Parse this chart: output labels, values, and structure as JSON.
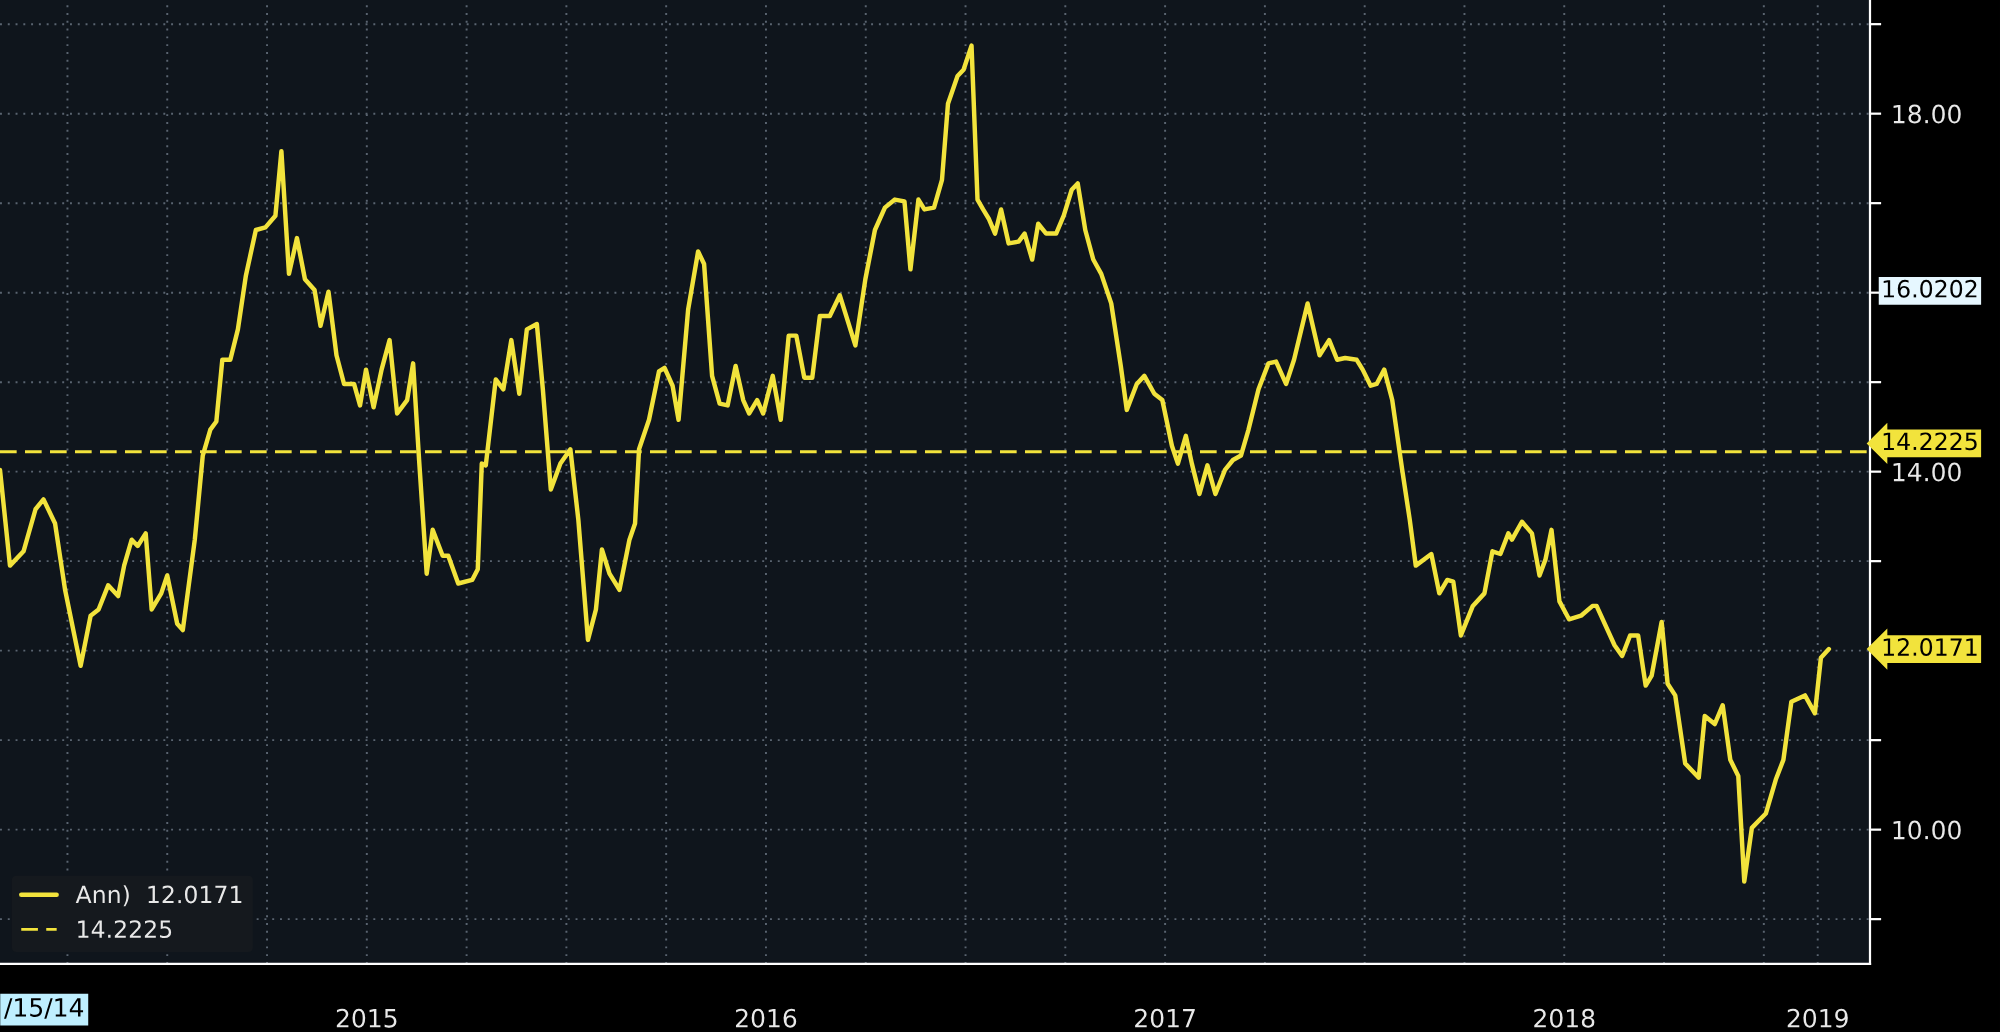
{
  "chart_data": {
    "type": "line",
    "x": [
      2014.581,
      2014.606,
      2014.64,
      2014.67,
      2014.69,
      2014.719,
      2014.744,
      2014.783,
      2014.808,
      2014.828,
      2014.852,
      2014.877,
      2014.892,
      2014.911,
      2014.926,
      2014.946,
      2014.961,
      2014.985,
      2015.0,
      2015.025,
      2015.039,
      2015.069,
      2015.089,
      2015.108,
      2015.123,
      2015.138,
      2015.158,
      2015.177,
      2015.197,
      2015.222,
      2015.246,
      2015.271,
      2015.286,
      2015.305,
      2015.325,
      2015.345,
      2015.369,
      2015.384,
      2015.404,
      2015.424,
      2015.443,
      2015.468,
      2015.483,
      2015.498,
      2015.517,
      2015.537,
      2015.557,
      2015.576,
      2015.601,
      2015.616,
      2015.631,
      2015.65,
      2015.665,
      2015.69,
      2015.704,
      2015.729,
      2015.764,
      2015.778,
      2015.788,
      2015.798,
      2015.823,
      2015.842,
      2015.862,
      2015.882,
      2015.901,
      2015.926,
      2015.941,
      2015.961,
      2015.985,
      2016.01,
      2016.03,
      2016.054,
      2016.074,
      2016.089,
      2016.108,
      2016.133,
      2016.158,
      2016.172,
      2016.182,
      2016.207,
      2016.232,
      2016.246,
      2016.266,
      2016.281,
      2016.305,
      2016.33,
      2016.345,
      2016.365,
      2016.384,
      2016.404,
      2016.424,
      2016.443,
      2016.458,
      2016.478,
      2016.493,
      2016.517,
      2016.537,
      2016.557,
      2016.576,
      2016.596,
      2016.616,
      2016.635,
      2016.66,
      2016.685,
      2016.724,
      2016.749,
      2016.773,
      2016.798,
      2016.823,
      2016.847,
      2016.862,
      2016.882,
      2016.897,
      2016.921,
      2016.941,
      2016.956,
      2016.98,
      2016.995,
      2017.015,
      2017.03,
      2017.044,
      2017.059,
      2017.074,
      2017.089,
      2017.108,
      2017.133,
      2017.148,
      2017.167,
      2017.182,
      2017.202,
      2017.227,
      2017.246,
      2017.266,
      2017.281,
      2017.3,
      2017.32,
      2017.34,
      2017.365,
      2017.389,
      2017.404,
      2017.429,
      2017.448,
      2017.473,
      2017.493,
      2017.517,
      2017.532,
      2017.552,
      2017.567,
      2017.586,
      2017.606,
      2017.626,
      2017.65,
      2017.67,
      2017.69,
      2017.709,
      2017.734,
      2017.759,
      2017.778,
      2017.803,
      2017.823,
      2017.857,
      2017.887,
      2017.911,
      2017.931,
      2017.951,
      2017.98,
      2017.995,
      2018.015,
      2018.03,
      2018.049,
      2018.069,
      2018.094,
      2018.113,
      2018.128,
      2018.167,
      2018.187,
      2018.207,
      2018.222,
      2018.241,
      2018.271,
      2018.3,
      2018.32,
      2018.34,
      2018.36,
      2018.369,
      2018.394,
      2018.419,
      2018.438,
      2018.453,
      2018.468,
      2018.488,
      2018.512,
      2018.542,
      2018.571,
      2018.581,
      2018.626,
      2018.645,
      2018.665,
      2018.685,
      2018.704,
      2018.719,
      2018.744,
      2018.759,
      2018.778,
      2018.803,
      2018.837,
      2018.852,
      2018.877,
      2018.897,
      2018.916,
      2018.936,
      2018.951,
      2018.97,
      2019.005,
      2019.03,
      2019.049,
      2019.069,
      2019.103,
      2019.128,
      2019.143,
      2019.163
    ],
    "series": [
      {
        "name": "Ann)  12.0171",
        "color": "#f2e33c",
        "values": [
          14.02,
          12.95,
          13.11,
          13.58,
          13.69,
          13.42,
          12.68,
          11.83,
          12.39,
          12.46,
          12.73,
          12.61,
          12.95,
          13.24,
          13.17,
          13.31,
          12.46,
          12.64,
          12.84,
          12.3,
          12.23,
          13.24,
          14.18,
          14.47,
          14.56,
          15.25,
          15.25,
          15.59,
          16.19,
          16.7,
          16.73,
          16.86,
          17.58,
          16.21,
          16.61,
          16.15,
          16.03,
          15.63,
          16.01,
          15.3,
          14.98,
          14.98,
          14.74,
          15.14,
          14.72,
          15.14,
          15.47,
          14.65,
          14.8,
          15.21,
          14.13,
          12.86,
          13.35,
          13.06,
          13.06,
          12.75,
          12.79,
          12.91,
          14.09,
          14.07,
          15.03,
          14.92,
          15.47,
          14.87,
          15.59,
          15.65,
          14.92,
          13.8,
          14.09,
          14.25,
          13.46,
          12.12,
          12.46,
          13.13,
          12.86,
          12.68,
          13.24,
          13.42,
          14.25,
          14.58,
          15.12,
          15.16,
          14.96,
          14.58,
          15.81,
          16.46,
          16.32,
          15.07,
          14.76,
          14.74,
          15.18,
          14.8,
          14.65,
          14.8,
          14.65,
          15.07,
          14.58,
          15.52,
          15.52,
          15.05,
          15.05,
          15.74,
          15.74,
          15.97,
          15.41,
          16.15,
          16.7,
          16.95,
          17.04,
          17.02,
          16.26,
          17.04,
          16.93,
          16.95,
          17.26,
          18.11,
          18.42,
          18.49,
          18.76,
          17.04,
          16.93,
          16.82,
          16.66,
          16.93,
          16.55,
          16.57,
          16.66,
          16.37,
          16.77,
          16.66,
          16.66,
          16.86,
          17.15,
          17.22,
          16.7,
          16.37,
          16.21,
          15.88,
          15.18,
          14.69,
          14.98,
          15.07,
          14.87,
          14.8,
          14.29,
          14.09,
          14.4,
          14.09,
          13.75,
          14.07,
          13.75,
          14.02,
          14.13,
          14.18,
          14.47,
          14.92,
          15.21,
          15.23,
          14.98,
          15.25,
          15.88,
          15.3,
          15.47,
          15.25,
          15.27,
          15.25,
          15.14,
          14.96,
          14.98,
          15.14,
          14.8,
          14.02,
          13.46,
          12.95,
          13.08,
          12.64,
          12.79,
          12.77,
          12.17,
          12.5,
          12.64,
          13.11,
          13.08,
          13.31,
          13.24,
          13.44,
          13.31,
          12.84,
          13.02,
          13.35,
          12.55,
          12.35,
          12.39,
          12.5,
          12.5,
          12.06,
          11.94,
          12.17,
          12.17,
          11.61,
          11.72,
          12.32,
          11.63,
          11.5,
          10.74,
          10.58,
          11.27,
          11.18,
          11.39,
          10.78,
          10.6,
          9.42,
          10.02,
          10.18,
          10.56,
          10.78,
          11.43,
          11.5,
          11.3,
          11.92,
          12.0171
        ]
      }
    ],
    "xlim": [
      2014.581,
      2019.266
    ],
    "xticks": [
      {
        "value": 2014.75,
        "label": null
      },
      {
        "value": 2015.0,
        "label": null
      },
      {
        "value": 2015.25,
        "label": null
      },
      {
        "value": 2015.5,
        "label": "2015"
      },
      {
        "value": 2015.75,
        "label": null
      },
      {
        "value": 2016.0,
        "label": null
      },
      {
        "value": 2016.25,
        "label": null
      },
      {
        "value": 2016.5,
        "label": "2016"
      },
      {
        "value": 2016.75,
        "label": null
      },
      {
        "value": 2017.0,
        "label": null
      },
      {
        "value": 2017.25,
        "label": null
      },
      {
        "value": 2017.5,
        "label": "2017"
      },
      {
        "value": 2017.75,
        "label": null
      },
      {
        "value": 2018.0,
        "label": null
      },
      {
        "value": 2018.25,
        "label": null
      },
      {
        "value": 2018.5,
        "label": "2018"
      },
      {
        "value": 2018.75,
        "label": null
      },
      {
        "value": 2019.0,
        "label": null
      },
      {
        "value": 2019.135,
        "label": "2019"
      }
    ],
    "ylim": [
      8.5,
      19.27
    ],
    "yticks": [
      {
        "value": 9,
        "label": null
      },
      {
        "value": 10,
        "label": "10.00"
      },
      {
        "value": 11,
        "label": null
      },
      {
        "value": 12,
        "label": null
      },
      {
        "value": 13,
        "label": null
      },
      {
        "value": 14,
        "label": "14.00"
      },
      {
        "value": 15,
        "label": null
      },
      {
        "value": 16,
        "label": null
      },
      {
        "value": 17,
        "label": null
      },
      {
        "value": 18,
        "label": "18.00"
      },
      {
        "value": 19,
        "label": null
      }
    ],
    "ref_lines": [
      {
        "axis": "y",
        "value": 14.2225,
        "label": "14.2225",
        "color": "#f2e33c",
        "line_style": "dashed"
      }
    ],
    "annotations": [
      "12.0171",
      "16.0202",
      "/15/14"
    ],
    "grid": true,
    "legend": "bottom left",
    "marker": "none",
    "line_style": "solid"
  }
}
